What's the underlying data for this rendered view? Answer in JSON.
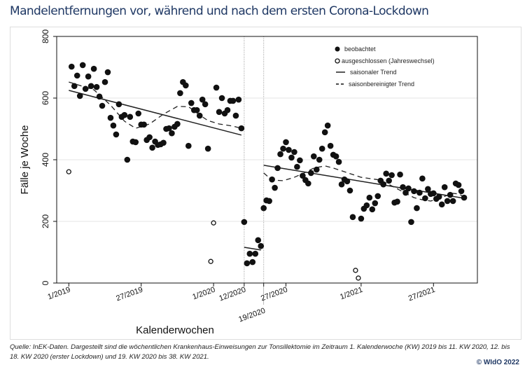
{
  "title": "Mandelentfernungen vor, während und nach dem ersten Corona-Lockdown",
  "footer": {
    "source": "Quelle: InEK-Daten. Dargestellt sind die wöchentlichen Krankenhaus-Einweisungen zur Tonsillektomie im Zeitraum 1. Kalenderwoche (KW) 2019 bis 11. KW 2020, 12. bis 18. KW 2020 (erster Lockdown) und 19. KW 2020 bis 38. KW 2021.",
    "copyright": "© WIdO 2022"
  },
  "chart_data": {
    "type": "scatter",
    "xlabel": "Kalenderwochen",
    "ylabel": "Fälle je Woche",
    "ylim": [
      0,
      800
    ],
    "yticks": [
      "0",
      "200",
      "400",
      "600",
      "800"
    ],
    "xticks": [
      "1/2019",
      "27/2019",
      "1/2020",
      "12/2020",
      "19/2020",
      "27/2020",
      "1/2021",
      "27/2021"
    ],
    "xlim": [
      "1/2019",
      "38/2021"
    ],
    "grid": "horizontal",
    "phase_boundaries": [
      "12/2020",
      "19/2020"
    ],
    "legend": {
      "placement": "top-right",
      "observed": "beobachtet",
      "excluded": "ausgeschlossen (Jahreswechsel)",
      "seasonal": "saisonaler Trend",
      "adjusted": "saisonbereinigter Trend"
    },
    "colors": {
      "points": "#111111",
      "lines": "#222222",
      "grid": "#e6e6e6",
      "title": "#1f3864"
    },
    "observed": [
      [
        "2/2019",
        702
      ],
      [
        "3/2019",
        639
      ],
      [
        "4/2019",
        673
      ],
      [
        "5/2019",
        607
      ],
      [
        "6/2019",
        707
      ],
      [
        "7/2019",
        630
      ],
      [
        "8/2019",
        670
      ],
      [
        "9/2019",
        639
      ],
      [
        "10/2019",
        695
      ],
      [
        "11/2019",
        636
      ],
      [
        "12/2019",
        605
      ],
      [
        "13/2019",
        575
      ],
      [
        "14/2019",
        652
      ],
      [
        "15/2019",
        684
      ],
      [
        "16/2019",
        536
      ],
      [
        "17/2019",
        511
      ],
      [
        "18/2019",
        482
      ],
      [
        "19/2019",
        580
      ],
      [
        "20/2019",
        539
      ],
      [
        "21/2019",
        545
      ],
      [
        "22/2019",
        400
      ],
      [
        "23/2019",
        539
      ],
      [
        "24/2019",
        459
      ],
      [
        "25/2019",
        457
      ],
      [
        "26/2019",
        550
      ],
      [
        "27/2019",
        514
      ],
      [
        "28/2019",
        514
      ],
      [
        "29/2019",
        464
      ],
      [
        "30/2019",
        473
      ],
      [
        "31/2019",
        439
      ],
      [
        "32/2019",
        459
      ],
      [
        "33/2019",
        448
      ],
      [
        "34/2019",
        450
      ],
      [
        "35/2019",
        455
      ],
      [
        "36/2019",
        500
      ],
      [
        "37/2019",
        502
      ],
      [
        "38/2019",
        486
      ],
      [
        "39/2019",
        507
      ],
      [
        "40/2019",
        516
      ],
      [
        "41/2019",
        616
      ],
      [
        "42/2019",
        652
      ],
      [
        "43/2019",
        641
      ],
      [
        "44/2019",
        445
      ],
      [
        "45/2019",
        584
      ],
      [
        "46/2019",
        561
      ],
      [
        "47/2019",
        561
      ],
      [
        "48/2019",
        543
      ],
      [
        "49/2019",
        595
      ],
      [
        "50/2019",
        580
      ],
      [
        "51/2019",
        436
      ],
      [
        "2/2020",
        634
      ],
      [
        "3/2020",
        555
      ],
      [
        "4/2020",
        600
      ],
      [
        "5/2020",
        550
      ],
      [
        "6/2020",
        561
      ],
      [
        "7/2020",
        591
      ],
      [
        "8/2020",
        591
      ],
      [
        "9/2020",
        543
      ],
      [
        "10/2020",
        595
      ],
      [
        "11/2020",
        502
      ],
      [
        "12/2020",
        198
      ],
      [
        "13/2020",
        64
      ],
      [
        "14/2020",
        95
      ],
      [
        "15/2020",
        68
      ],
      [
        "16/2020",
        95
      ],
      [
        "17/2020",
        139
      ],
      [
        "18/2020",
        120
      ],
      [
        "19/2020",
        243
      ],
      [
        "20/2020",
        268
      ],
      [
        "21/2020",
        266
      ],
      [
        "22/2020",
        336
      ],
      [
        "23/2020",
        309
      ],
      [
        "24/2020",
        373
      ],
      [
        "25/2020",
        418
      ],
      [
        "26/2020",
        436
      ],
      [
        "27/2020",
        457
      ],
      [
        "28/2020",
        432
      ],
      [
        "29/2020",
        407
      ],
      [
        "30/2020",
        425
      ],
      [
        "31/2020",
        377
      ],
      [
        "32/2020",
        398
      ],
      [
        "33/2020",
        348
      ],
      [
        "34/2020",
        334
      ],
      [
        "35/2020",
        323
      ],
      [
        "36/2020",
        357
      ],
      [
        "37/2020",
        411
      ],
      [
        "38/2020",
        368
      ],
      [
        "39/2020",
        400
      ],
      [
        "40/2020",
        436
      ],
      [
        "41/2020",
        489
      ],
      [
        "42/2020",
        511
      ],
      [
        "43/2020",
        445
      ],
      [
        "44/2020",
        416
      ],
      [
        "45/2020",
        411
      ],
      [
        "46/2020",
        393
      ],
      [
        "47/2020",
        320
      ],
      [
        "48/2020",
        336
      ],
      [
        "49/2020",
        330
      ],
      [
        "50/2020",
        300
      ],
      [
        "51/2020",
        214
      ],
      [
        "1/2021",
        209
      ],
      [
        "2/2021",
        241
      ],
      [
        "3/2021",
        252
      ],
      [
        "4/2021",
        277
      ],
      [
        "5/2021",
        239
      ],
      [
        "6/2021",
        259
      ],
      [
        "7/2021",
        282
      ],
      [
        "8/2021",
        332
      ],
      [
        "9/2021",
        320
      ],
      [
        "10/2021",
        355
      ],
      [
        "11/2021",
        332
      ],
      [
        "12/2021",
        350
      ],
      [
        "13/2021",
        261
      ],
      [
        "14/2021",
        264
      ],
      [
        "15/2021",
        352
      ],
      [
        "16/2021",
        311
      ],
      [
        "17/2021",
        293
      ],
      [
        "18/2021",
        307
      ],
      [
        "19/2021",
        198
      ],
      [
        "20/2021",
        298
      ],
      [
        "21/2021",
        243
      ],
      [
        "22/2021",
        293
      ],
      [
        "23/2021",
        339
      ],
      [
        "24/2021",
        275
      ],
      [
        "25/2021",
        305
      ],
      [
        "26/2021",
        289
      ],
      [
        "27/2021",
        291
      ],
      [
        "28/2021",
        273
      ],
      [
        "29/2021",
        280
      ],
      [
        "30/2021",
        255
      ],
      [
        "31/2021",
        311
      ],
      [
        "32/2021",
        266
      ],
      [
        "33/2021",
        286
      ],
      [
        "34/2021",
        266
      ],
      [
        "35/2021",
        323
      ],
      [
        "36/2021",
        318
      ],
      [
        "37/2021",
        298
      ],
      [
        "38/2021",
        277
      ]
    ],
    "excluded": [
      [
        "1/2019",
        361
      ],
      [
        "52/2019",
        70
      ],
      [
        "1/2020",
        195
      ],
      [
        "52/2020",
        41
      ],
      [
        "53/2020",
        16
      ]
    ],
    "seasonal_trend": [
      [
        [
          "1/2019",
          625
        ],
        [
          "11/2020",
          480
        ]
      ],
      [
        [
          "12/2020",
          116
        ],
        [
          "18/2020",
          107
        ]
      ],
      [
        [
          "19/2020",
          382
        ],
        [
          "38/2021",
          275
        ]
      ]
    ],
    "adjusted_trend": [
      [
        [
          "1/2019",
          652
        ],
        [
          "10/2019",
          627
        ],
        [
          "16/2019",
          577
        ],
        [
          "21/2019",
          525
        ],
        [
          "25/2019",
          502
        ],
        [
          "30/2019",
          516
        ],
        [
          "35/2019",
          548
        ],
        [
          "40/2019",
          573
        ],
        [
          "44/2019",
          572
        ],
        [
          "49/2019",
          539
        ],
        [
          "51/2019",
          527
        ],
        [
          "3/2020",
          516
        ],
        [
          "8/2020",
          509
        ],
        [
          "11/2020",
          502
        ]
      ],
      [
        [
          "19/2020",
          357
        ],
        [
          "22/2020",
          334
        ],
        [
          "26/2020",
          332
        ],
        [
          "30/2020",
          343
        ],
        [
          "34/2020",
          359
        ],
        [
          "37/2020",
          373
        ],
        [
          "41/2020",
          380
        ],
        [
          "44/2020",
          373
        ],
        [
          "48/2020",
          361
        ],
        [
          "1/2021",
          343
        ],
        [
          "8/2021",
          334
        ],
        [
          "20/2021",
          277
        ],
        [
          "23/2021",
          270
        ],
        [
          "26/2021",
          266
        ],
        [
          "29/2021",
          275
        ],
        [
          "34/2021",
          291
        ],
        [
          "36/2021",
          289
        ],
        [
          "38/2021",
          280
        ]
      ]
    ]
  }
}
